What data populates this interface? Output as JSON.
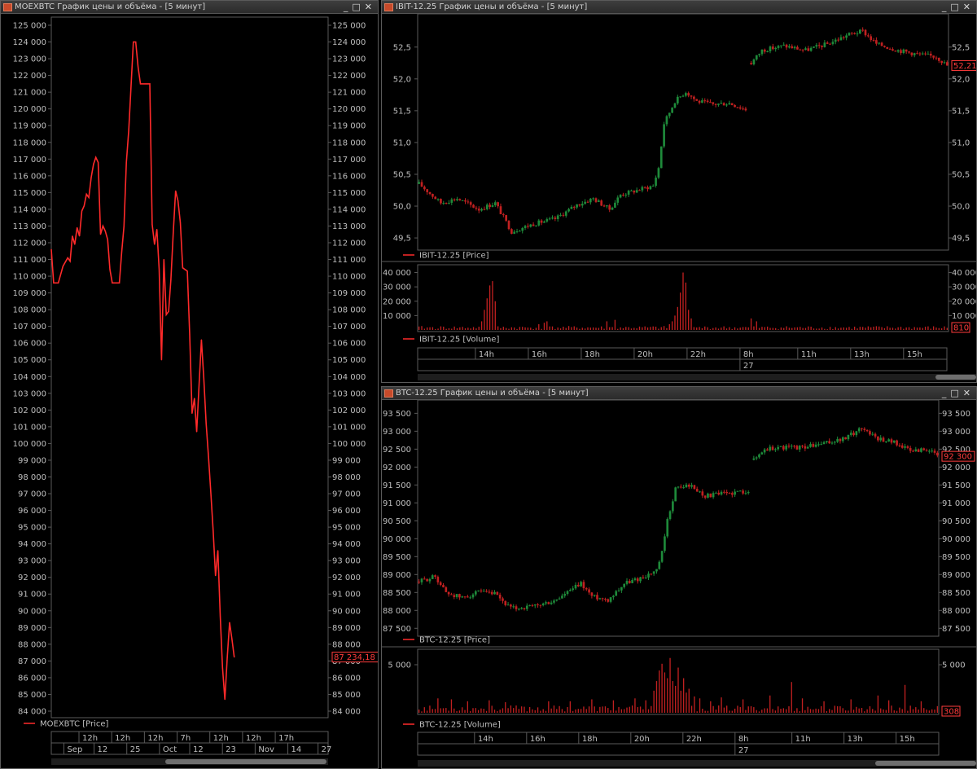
{
  "colors": {
    "line": "#ff2a2a",
    "up": "#1e8a3a",
    "down": "#c02020",
    "volume": "#c02020",
    "grid": "#5a5a5a",
    "text": "#bfbfbf",
    "price_badge": "#ff3b3b"
  },
  "windows": {
    "moex": {
      "title": "MOEXBTC График цены и объёма - [5 минут]",
      "legend": "MOEXBTC [Price]",
      "last_price": "87 234,18"
    },
    "ibit": {
      "title": "IBIT-12.25 График цены и объёма - [5 минут]",
      "price_legend": "IBIT-12.25 [Price]",
      "volume_legend": "IBIT-12.25 [Volume]",
      "last_price": "52,21",
      "last_volume": "810"
    },
    "btc": {
      "title": "BTC-12.25 График цены и объёма - [5 минут]",
      "price_legend": "BTC-12.25 [Price]",
      "volume_legend": "BTC-12.25 [Volume]",
      "last_price": "92 300",
      "last_volume": "308"
    }
  },
  "chart_data": [
    {
      "id": "moex",
      "type": "line",
      "ylim": [
        84000,
        125000
      ],
      "yticks": [
        84000,
        85000,
        86000,
        87000,
        88000,
        89000,
        90000,
        91000,
        92000,
        93000,
        94000,
        95000,
        96000,
        97000,
        98000,
        99000,
        100000,
        101000,
        102000,
        103000,
        104000,
        105000,
        106000,
        107000,
        108000,
        109000,
        110000,
        111000,
        112000,
        113000,
        114000,
        115000,
        116000,
        117000,
        118000,
        119000,
        120000,
        121000,
        122000,
        123000,
        124000,
        125000
      ],
      "ytick_labels": [
        "84 000",
        "85 000",
        "86 000",
        "87 000",
        "88 000",
        "89 000",
        "90 000",
        "91 000",
        "92 000",
        "93 000",
        "94 000",
        "95 000",
        "96 000",
        "97 000",
        "98 000",
        "99 000",
        "100 000",
        "101 000",
        "102 000",
        "103 000",
        "104 000",
        "105 000",
        "106 000",
        "107 000",
        "108 000",
        "109 000",
        "110 000",
        "111 000",
        "112 000",
        "113 000",
        "114 000",
        "115 000",
        "116 000",
        "117 000",
        "118 000",
        "119 000",
        "120 000",
        "121 000",
        "122 000",
        "123 000",
        "124 000",
        "125 000"
      ],
      "xlim": [
        0,
        100
      ],
      "x_top_labels": [
        {
          "x": 11,
          "label": "12h"
        },
        {
          "x": 24,
          "label": "12h"
        },
        {
          "x": 37,
          "label": "12h"
        },
        {
          "x": 50,
          "label": "7h"
        },
        {
          "x": 63,
          "label": "12h"
        },
        {
          "x": 76,
          "label": "12h"
        },
        {
          "x": 89,
          "label": "17h"
        }
      ],
      "x_bottom_labels": [
        {
          "x": 5,
          "label": "Sep"
        },
        {
          "x": 17,
          "label": "12"
        },
        {
          "x": 30,
          "label": "25"
        },
        {
          "x": 43,
          "label": "Oct"
        },
        {
          "x": 55,
          "label": "12"
        },
        {
          "x": 68,
          "label": "23"
        },
        {
          "x": 81,
          "label": "Nov"
        },
        {
          "x": 94,
          "label": "14"
        },
        {
          "x": 106,
          "label": "27"
        }
      ],
      "series": [
        {
          "values": [
            [
              0,
              111600
            ],
            [
              1,
              109600
            ],
            [
              3,
              109600
            ],
            [
              5,
              110600
            ],
            [
              7,
              111100
            ],
            [
              8,
              110900
            ],
            [
              9,
              112400
            ],
            [
              10,
              111900
            ],
            [
              11,
              112900
            ],
            [
              12,
              112400
            ],
            [
              13,
              113900
            ],
            [
              14,
              114200
            ],
            [
              15,
              114900
            ],
            [
              16,
              114700
            ],
            [
              17,
              115900
            ],
            [
              18,
              116700
            ],
            [
              19,
              117100
            ],
            [
              20,
              116800
            ],
            [
              21,
              112500
            ],
            [
              22,
              113000
            ],
            [
              23,
              112700
            ],
            [
              24,
              112200
            ],
            [
              25,
              110400
            ],
            [
              26,
              109600
            ],
            [
              29,
              109600
            ],
            [
              30,
              111400
            ],
            [
              31,
              113000
            ],
            [
              32,
              116800
            ],
            [
              33,
              118700
            ],
            [
              34,
              121400
            ],
            [
              35,
              124000
            ],
            [
              36,
              124000
            ],
            [
              37,
              122500
            ],
            [
              38,
              121500
            ],
            [
              42,
              121500
            ],
            [
              43,
              113100
            ],
            [
              44,
              111900
            ],
            [
              45,
              112800
            ],
            [
              46,
              110400
            ],
            [
              47,
              105000
            ],
            [
              48,
              111000
            ],
            [
              49,
              107700
            ],
            [
              50,
              107900
            ],
            [
              51,
              109800
            ],
            [
              52,
              112600
            ],
            [
              53,
              115100
            ],
            [
              54,
              114500
            ],
            [
              55,
              113200
            ],
            [
              56,
              110500
            ],
            [
              57,
              110400
            ],
            [
              58,
              110300
            ],
            [
              59,
              106500
            ],
            [
              60,
              101800
            ],
            [
              61,
              102700
            ],
            [
              62,
              100700
            ],
            [
              63,
              103500
            ],
            [
              64,
              106200
            ],
            [
              65,
              103900
            ],
            [
              66,
              101200
            ],
            [
              67,
              99200
            ],
            [
              68,
              97100
            ],
            [
              69,
              94800
            ],
            [
              70,
              92100
            ],
            [
              71,
              93600
            ],
            [
              72,
              89700
            ],
            [
              73,
              86600
            ],
            [
              74,
              84700
            ],
            [
              75,
              87200
            ],
            [
              76,
              89300
            ],
            [
              77,
              88300
            ],
            [
              78,
              87234
            ]
          ]
        }
      ]
    },
    {
      "id": "ibit-price",
      "type": "candlestick",
      "ylim": [
        49.36,
        52.92
      ],
      "yticks": [
        49.5,
        50.0,
        50.5,
        51.0,
        51.5,
        52.0,
        52.5
      ],
      "ytick_labels": [
        "49,5",
        "50,0",
        "50,5",
        "51,0",
        "51,5",
        "52,0",
        "52,5"
      ],
      "anchors": [
        [
          0,
          50.35
        ],
        [
          8,
          50.05
        ],
        [
          14,
          50.12
        ],
        [
          22,
          49.95
        ],
        [
          28,
          50.05
        ],
        [
          34,
          49.6
        ],
        [
          42,
          49.72
        ],
        [
          50,
          49.8
        ],
        [
          58,
          50.02
        ],
        [
          64,
          50.12
        ],
        [
          70,
          49.95
        ],
        [
          74,
          50.18
        ],
        [
          80,
          50.25
        ],
        [
          86,
          50.32
        ],
        [
          88,
          50.6
        ],
        [
          90,
          51.3
        ],
        [
          94,
          51.65
        ],
        [
          98,
          51.8
        ],
        [
          102,
          51.65
        ],
        [
          108,
          51.6
        ],
        [
          114,
          51.62
        ],
        [
          118,
          51.55
        ],
        [
          120,
          51.52
        ],
        [
          122,
          52.25
        ],
        [
          126,
          52.45
        ],
        [
          134,
          52.52
        ],
        [
          142,
          52.45
        ],
        [
          150,
          52.55
        ],
        [
          158,
          52.7
        ],
        [
          163,
          52.75
        ],
        [
          168,
          52.55
        ],
        [
          176,
          52.45
        ],
        [
          184,
          52.38
        ],
        [
          190,
          52.35
        ],
        [
          194,
          52.21
        ]
      ],
      "gaps": [
        [
          120.5,
          121.5
        ]
      ],
      "xmax": 194
    },
    {
      "id": "ibit-volume",
      "type": "bar",
      "ylim": [
        0,
        42000
      ],
      "yticks": [
        10000,
        20000,
        30000,
        40000
      ],
      "ytick_labels": [
        "10 000",
        "20 000",
        "30 000",
        "40 000"
      ],
      "x_top_labels": [
        {
          "x": 12,
          "label": "14h"
        },
        {
          "x": 23,
          "label": "16h"
        },
        {
          "x": 34,
          "label": "18h"
        },
        {
          "x": 45,
          "label": "20h"
        },
        {
          "x": 56,
          "label": "22h"
        },
        {
          "x": 67,
          "label": "8h"
        },
        {
          "x": 79,
          "label": "11h"
        },
        {
          "x": 90,
          "label": "13h"
        },
        {
          "x": 101,
          "label": "15h"
        }
      ],
      "x_bottom_labels": [
        {
          "x": 67,
          "label": "27"
        }
      ],
      "spikes": [
        [
          23,
          6000
        ],
        [
          24,
          14000
        ],
        [
          25,
          22000
        ],
        [
          26,
          31000
        ],
        [
          27,
          34000
        ],
        [
          28,
          20000
        ],
        [
          44,
          4000
        ],
        [
          46,
          5000
        ],
        [
          47,
          6000
        ],
        [
          69,
          6000
        ],
        [
          72,
          7000
        ],
        [
          92,
          4000
        ],
        [
          93,
          6000
        ],
        [
          94,
          10000
        ],
        [
          95,
          16000
        ],
        [
          96,
          26000
        ],
        [
          97,
          40000
        ],
        [
          98,
          33000
        ],
        [
          99,
          14000
        ],
        [
          100,
          8000
        ],
        [
          122,
          8000
        ],
        [
          124,
          6000
        ]
      ],
      "base": 1600,
      "xmax": 194
    },
    {
      "id": "btc-price",
      "type": "candlestick",
      "ylim": [
        87370,
        93690
      ],
      "yticks": [
        87500,
        88000,
        88500,
        89000,
        89500,
        90000,
        90500,
        91000,
        91500,
        92000,
        92500,
        93000,
        93500
      ],
      "ytick_labels": [
        "87 500",
        "88 000",
        "88 500",
        "89 000",
        "89 500",
        "90 000",
        "90 500",
        "91 000",
        "91 500",
        "92 000",
        "92 500",
        "93 000",
        "93 500"
      ],
      "anchors": [
        [
          0,
          88800
        ],
        [
          6,
          88950
        ],
        [
          10,
          88500
        ],
        [
          16,
          88350
        ],
        [
          22,
          88500
        ],
        [
          28,
          88450
        ],
        [
          34,
          88050
        ],
        [
          42,
          88100
        ],
        [
          50,
          88250
        ],
        [
          56,
          88550
        ],
        [
          60,
          88750
        ],
        [
          64,
          88400
        ],
        [
          70,
          88300
        ],
        [
          76,
          88750
        ],
        [
          82,
          88900
        ],
        [
          88,
          89100
        ],
        [
          90,
          89600
        ],
        [
          92,
          90500
        ],
        [
          95,
          91400
        ],
        [
          100,
          91500
        ],
        [
          106,
          91200
        ],
        [
          112,
          91250
        ],
        [
          118,
          91300
        ],
        [
          122,
          91350
        ],
        [
          124,
          92200
        ],
        [
          128,
          92500
        ],
        [
          134,
          92550
        ],
        [
          142,
          92550
        ],
        [
          150,
          92650
        ],
        [
          158,
          92800
        ],
        [
          164,
          93100
        ],
        [
          170,
          92800
        ],
        [
          176,
          92700
        ],
        [
          182,
          92450
        ],
        [
          188,
          92500
        ],
        [
          192,
          92300
        ]
      ],
      "gaps": [
        [
          122.5,
          123.5
        ]
      ],
      "xmax": 192
    },
    {
      "id": "btc-volume",
      "type": "bar",
      "ylim": [
        0,
        6100
      ],
      "yticks": [
        5000
      ],
      "ytick_labels": [
        "5 000"
      ],
      "x_top_labels": [
        {
          "x": 12,
          "label": "14h"
        },
        {
          "x": 23,
          "label": "16h"
        },
        {
          "x": 34,
          "label": "18h"
        },
        {
          "x": 45,
          "label": "20h"
        },
        {
          "x": 56,
          "label": "22h"
        },
        {
          "x": 67,
          "label": "8h"
        },
        {
          "x": 79,
          "label": "11h"
        },
        {
          "x": 90,
          "label": "13h"
        },
        {
          "x": 101,
          "label": "15h"
        }
      ],
      "x_bottom_labels": [
        {
          "x": 67,
          "label": "27"
        }
      ],
      "spikes": [
        [
          7,
          1500
        ],
        [
          12,
          1400
        ],
        [
          18,
          1200
        ],
        [
          26,
          1300
        ],
        [
          32,
          1100
        ],
        [
          48,
          1200
        ],
        [
          56,
          1200
        ],
        [
          64,
          1400
        ],
        [
          72,
          1300
        ],
        [
          80,
          1500
        ],
        [
          84,
          1300
        ],
        [
          87,
          2300
        ],
        [
          88,
          3300
        ],
        [
          89,
          4400
        ],
        [
          90,
          5100
        ],
        [
          91,
          4200
        ],
        [
          92,
          3600
        ],
        [
          93,
          5700
        ],
        [
          94,
          3300
        ],
        [
          95,
          2800
        ],
        [
          96,
          4700
        ],
        [
          97,
          2300
        ],
        [
          98,
          3600
        ],
        [
          99,
          2100
        ],
        [
          100,
          2500
        ],
        [
          102,
          1700
        ],
        [
          104,
          1500
        ],
        [
          108,
          1200
        ],
        [
          112,
          1600
        ],
        [
          120,
          1400
        ],
        [
          130,
          1800
        ],
        [
          138,
          3200
        ],
        [
          142,
          1500
        ],
        [
          150,
          1200
        ],
        [
          160,
          1400
        ],
        [
          170,
          1800
        ],
        [
          174,
          1300
        ],
        [
          180,
          2900
        ],
        [
          186,
          1200
        ]
      ],
      "base": 450,
      "xmax": 192
    }
  ]
}
